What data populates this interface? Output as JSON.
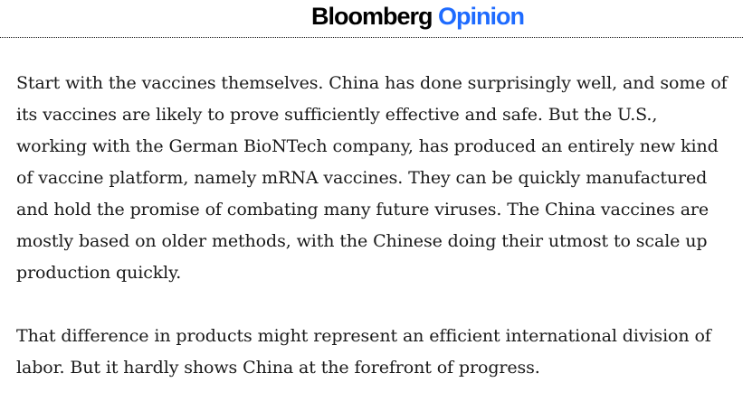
{
  "header": {
    "brand": "Bloomberg",
    "section": "Opinion"
  },
  "colors": {
    "brand": "#000000",
    "section_accent": "#1e6bff",
    "body_text": "#1a1a1a"
  },
  "article": {
    "paragraphs": [
      "Start with the vaccines themselves. China has done surprisingly well, and some of its vaccines are likely to prove sufficiently effective and safe. But the U.S., working with the German BioNTech company, has produced an entirely new kind of vaccine platform, namely mRNA vaccines. They can be quickly manufactured and hold the promise of combating many future viruses. The China vaccines are mostly based on older methods, with the Chinese doing their utmost to scale up production quickly.",
      "That difference in products might represent an efficient international division of labor. But it hardly shows China at the forefront of progress."
    ]
  }
}
